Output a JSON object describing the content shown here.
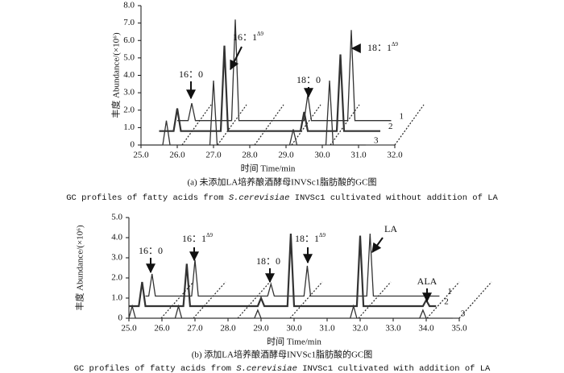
{
  "chart_data": [
    {
      "type": "line",
      "ylabel": "丰度 Abundance/(×10⁶)",
      "xlabel": "时间 Time/min",
      "caption": "(a) 未添加LA培养酿酒酵母INVSc1脂肪酸的GC图",
      "caption_en": [
        "GC profiles of fatty acids from ",
        "S.cerevisiae",
        " INVSc1 cultivated without addition of LA"
      ],
      "xlim": [
        25,
        32
      ],
      "xticks": [
        {
          "value": 25,
          "label": "25.0"
        },
        {
          "value": 26,
          "label": "26.0"
        },
        {
          "value": 27,
          "label": "27.0"
        },
        {
          "value": 28,
          "label": "28.0"
        },
        {
          "value": 29,
          "label": "29.0"
        },
        {
          "value": 30,
          "label": "30.0"
        },
        {
          "value": 31,
          "label": "31.0"
        },
        {
          "value": 32,
          "label": "32.0"
        }
      ],
      "ylim": [
        0,
        8
      ],
      "yticks": [
        0,
        {
          "value": 1,
          "label": "1.0"
        },
        {
          "value": 2,
          "label": "2.0"
        },
        {
          "value": 3,
          "label": "3.0"
        },
        {
          "value": 4,
          "label": "4.0"
        },
        {
          "value": 5,
          "label": "5.0"
        },
        {
          "value": 6,
          "label": "6.0"
        },
        {
          "value": 7,
          "label": "7.0"
        },
        {
          "value": 8,
          "label": "8.0"
        }
      ],
      "annotations": [
        {
          "text": "16：0"
        },
        {
          "text": "16：1",
          "sup": "Δ9"
        },
        {
          "text": "18：0"
        },
        {
          "text": "18：1",
          "sup": "Δ9"
        }
      ],
      "series": [
        {
          "name": "1",
          "color": "#333333",
          "x": [
            26.0,
            26.3,
            26.4,
            26.5,
            27.5,
            27.6,
            27.7,
            29.5,
            29.6,
            29.7,
            30.7,
            30.8,
            30.9,
            31.9
          ],
          "values": [
            1.4,
            1.4,
            2.4,
            1.4,
            1.4,
            7.2,
            1.4,
            1.4,
            2.9,
            1.4,
            1.4,
            6.6,
            1.4,
            1.4
          ]
        },
        {
          "name": "2",
          "color": "#333333",
          "x": [
            25.5,
            25.9,
            26.0,
            26.1,
            27.2,
            27.3,
            27.4,
            29.4,
            29.5,
            29.6,
            30.4,
            30.5,
            30.6,
            31.6
          ],
          "values": [
            0.8,
            0.8,
            2.1,
            0.8,
            0.8,
            5.7,
            0.8,
            0.8,
            1.9,
            0.8,
            0.8,
            5.2,
            0.8,
            0.8
          ]
        },
        {
          "name": "3",
          "color": "#333333",
          "x": [
            25.0,
            25.6,
            25.7,
            25.8,
            26.9,
            27.0,
            27.1,
            29.1,
            29.2,
            29.3,
            30.1,
            30.2,
            30.3,
            31.2
          ],
          "values": [
            0,
            0,
            1.4,
            0,
            0,
            3.7,
            0,
            0,
            0.9,
            0,
            0,
            3.7,
            0,
            0
          ]
        }
      ]
    },
    {
      "type": "line",
      "ylabel": "丰度 Abundance/(×10⁶)",
      "xlabel": "时间 Time/min",
      "caption": "(b) 添加LA培养酿酒酵母INVSc1脂肪酸的GC图",
      "caption_en": [
        "GC profiles of fatty acids from ",
        "S.cerevisiae",
        " INVSc1 cultivated with addition of LA"
      ],
      "xlim": [
        25,
        35
      ],
      "xticks": [
        {
          "value": 25,
          "label": "25.0"
        },
        {
          "value": 26,
          "label": "26.0"
        },
        {
          "value": 27,
          "label": "27.0"
        },
        {
          "value": 28,
          "label": "28.0"
        },
        {
          "value": 29,
          "label": "29.0"
        },
        {
          "value": 30,
          "label": "30.0"
        },
        {
          "value": 31,
          "label": "31.0"
        },
        {
          "value": 32,
          "label": "32.0"
        },
        {
          "value": 33,
          "label": "33.0"
        },
        {
          "value": 34,
          "label": "34.0"
        },
        {
          "value": 35,
          "label": "35.0"
        }
      ],
      "ylim": [
        0,
        5
      ],
      "yticks": [
        0,
        {
          "value": 1,
          "label": "1.0"
        },
        {
          "value": 2,
          "label": "2.0"
        },
        {
          "value": 3,
          "label": "3.0"
        },
        {
          "value": 4,
          "label": "4.0"
        },
        {
          "value": 5,
          "label": "5.0"
        }
      ],
      "annotations": [
        {
          "text": "16：0"
        },
        {
          "text": "16：1",
          "sup": "Δ9"
        },
        {
          "text": "18：0"
        },
        {
          "text": "18：1",
          "sup": "Δ9"
        },
        {
          "text": "LA"
        },
        {
          "text": "ALA"
        }
      ],
      "series": [
        {
          "name": "1",
          "color": "#333333",
          "x": [
            25.5,
            25.6,
            25.7,
            25.8,
            26.9,
            27.0,
            27.1,
            29.2,
            29.3,
            29.4,
            30.3,
            30.4,
            30.5,
            32.2,
            32.3,
            32.4,
            34.4
          ],
          "values": [
            1.1,
            1.1,
            2.2,
            1.1,
            1.1,
            2.9,
            1.1,
            1.1,
            1.7,
            1.1,
            1.1,
            2.6,
            1.1,
            1.1,
            4.2,
            1.1,
            1.1
          ]
        },
        {
          "name": "2",
          "color": "#333333",
          "x": [
            25.0,
            25.3,
            25.4,
            25.5,
            26.65,
            26.75,
            26.85,
            28.9,
            29.0,
            29.1,
            29.8,
            29.9,
            30.0,
            31.9,
            32.0,
            32.1,
            33.9,
            34.0,
            34.1,
            34.3
          ],
          "values": [
            0.6,
            0.6,
            1.8,
            0.6,
            0.6,
            2.7,
            0.6,
            0.6,
            1.0,
            0.6,
            0.6,
            4.2,
            0.6,
            0.6,
            4.1,
            0.6,
            0.6,
            0.9,
            0.6,
            0.6
          ]
        },
        {
          "name": "3",
          "color": "#333333",
          "x": [
            25.0,
            25.1,
            25.2,
            26.4,
            26.5,
            26.6,
            28.8,
            28.9,
            29.0,
            31.7,
            31.8,
            31.9,
            33.8,
            33.9,
            34.0,
            34.8
          ],
          "values": [
            0,
            0.6,
            0,
            0,
            0.6,
            0,
            0,
            0.4,
            0,
            0,
            0.6,
            0,
            0,
            0.4,
            0,
            0
          ]
        }
      ]
    }
  ]
}
